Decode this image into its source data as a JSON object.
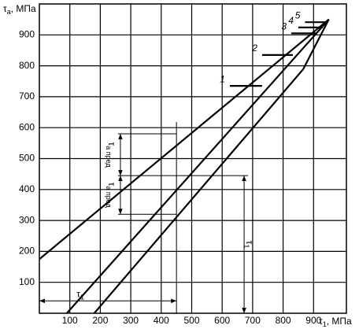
{
  "chart_data": {
    "type": "line",
    "ylabel": {
      "symbol": "τ",
      "subscript": "a",
      "unit": ", МПа"
    },
    "xlabel": {
      "symbol": "τ",
      "subscript": "1",
      "unit": ", МПа"
    },
    "xlim": [
      0,
      1000
    ],
    "ylim": [
      0,
      1000
    ],
    "xticks": [
      100,
      200,
      300,
      400,
      500,
      600,
      700,
      800,
      900
    ],
    "yticks": [
      100,
      200,
      300,
      400,
      500,
      600,
      700,
      800,
      900
    ],
    "grid": true,
    "color": "#000000",
    "series": [
      {
        "x": [
          0,
          950
        ],
        "values": [
          175,
          950
        ]
      },
      {
        "x": [
          90,
          950
        ],
        "values": [
          0,
          950
        ]
      },
      {
        "x": [
          180,
          866,
          950
        ],
        "values": [
          0,
          789,
          950
        ]
      },
      {
        "name": "1",
        "x": [
          625,
          731
        ],
        "values": [
          735,
          735
        ]
      },
      {
        "name": "2",
        "x": [
          731,
          832
        ],
        "values": [
          835,
          835
        ]
      },
      {
        "name": "3",
        "x": [
          827,
          912
        ],
        "values": [
          905,
          905
        ]
      },
      {
        "name": "4",
        "x": [
          850,
          930
        ],
        "values": [
          924,
          924
        ]
      },
      {
        "name": "5",
        "x": [
          872,
          945
        ],
        "values": [
          941,
          941
        ]
      }
    ],
    "reference_lines": [
      {
        "x": [
          258,
          450
        ],
        "values": [
          580,
          580
        ]
      },
      {
        "x": [
          258,
          685
        ],
        "values": [
          445,
          445
        ]
      },
      {
        "x": [
          258,
          450
        ],
        "values": [
          320,
          320
        ]
      },
      {
        "x": [
          450,
          450
        ],
        "values": [
          0,
          618
        ]
      }
    ],
    "arrows": [
      {
        "symbol": "τ",
        "subscript": "a пред",
        "x": [
          266,
          266
        ],
        "values": [
          580,
          445
        ]
      },
      {
        "symbol": "τ",
        "subscript": "a пред",
        "x": [
          266,
          266
        ],
        "values": [
          445,
          320
        ]
      },
      {
        "symbol": "τ",
        "subscript": "1",
        "x": [
          672,
          672
        ],
        "values": [
          445,
          0
        ]
      },
      {
        "symbol": "τ",
        "subscript": "1",
        "x": [
          0,
          450
        ],
        "values": [
          40,
          40
        ]
      }
    ]
  }
}
